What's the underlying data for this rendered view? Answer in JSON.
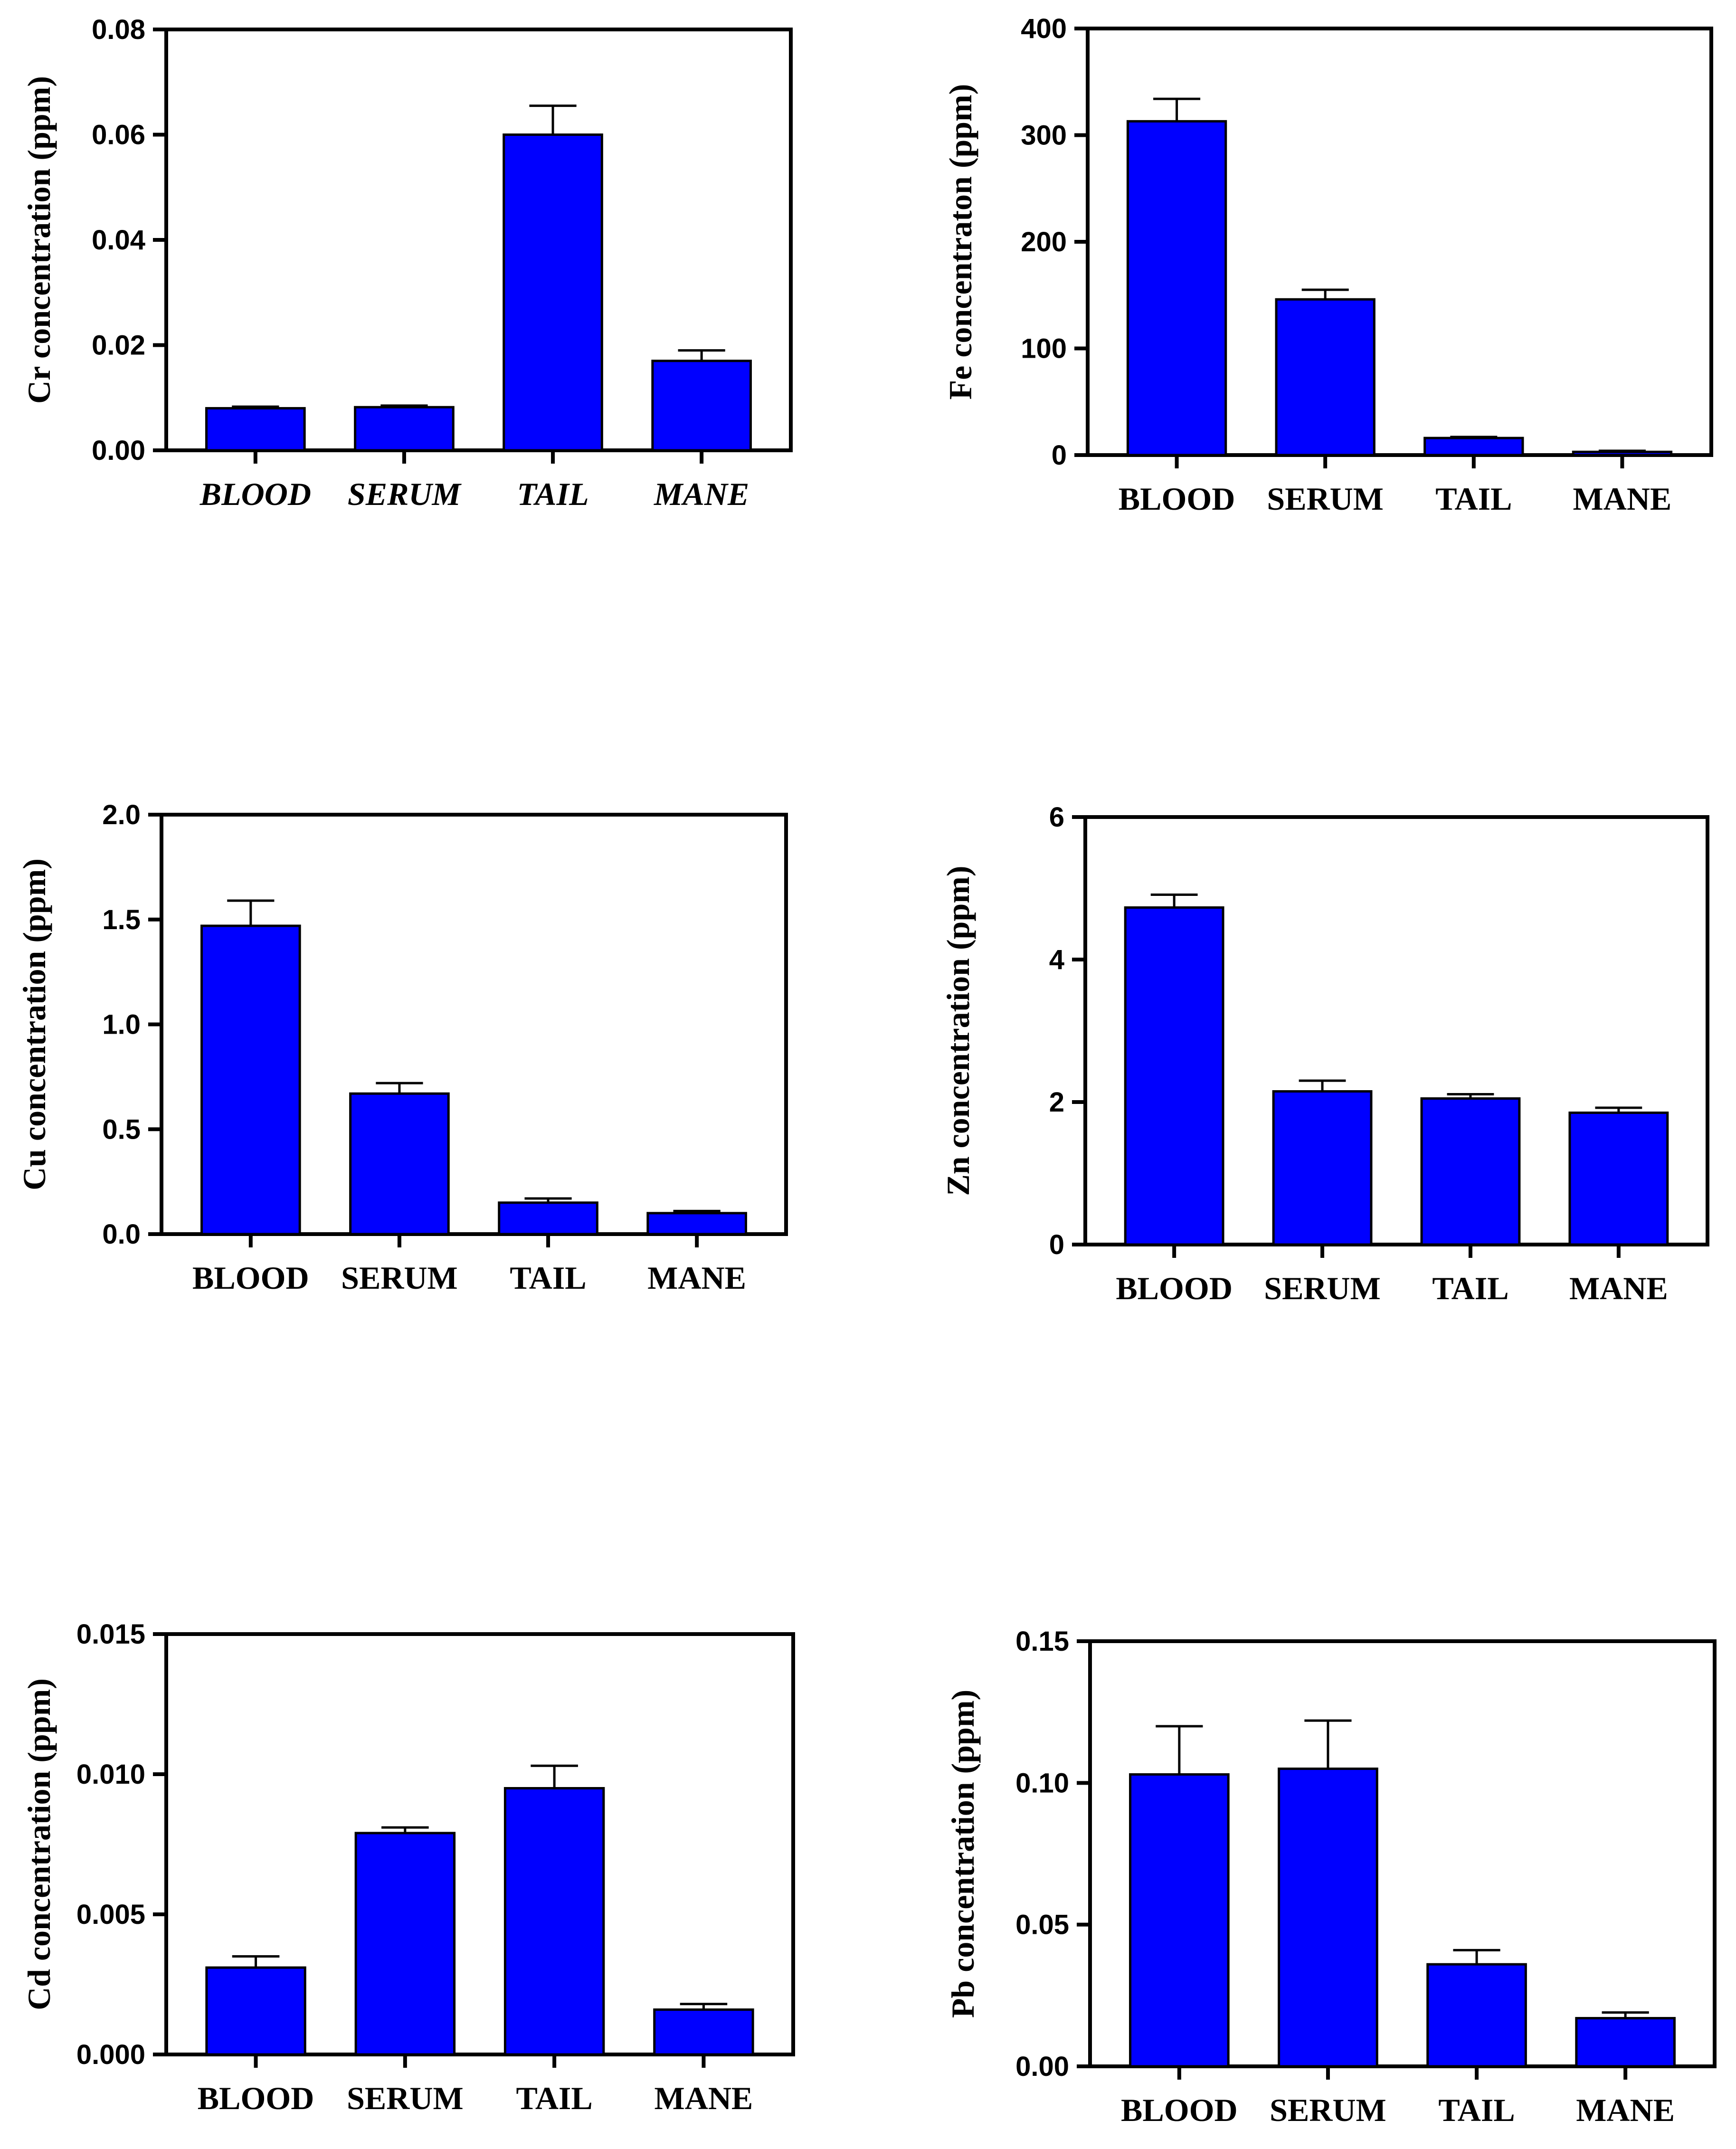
{
  "chart_data": [
    {
      "type": "bar",
      "title": "",
      "ylabel": "Cr concentration (ppm)",
      "xlabel": "",
      "categories": [
        "BLOOD",
        "SERUM",
        "TAIL",
        "MANE"
      ],
      "categories_italic": true,
      "values": [
        0.008,
        0.0082,
        0.06,
        0.017
      ],
      "errors": [
        0.0003,
        0.0003,
        0.0055,
        0.002
      ],
      "ylim": [
        0,
        0.08
      ],
      "yticks": [
        "0.00",
        "0.02",
        "0.04",
        "0.06",
        "0.08"
      ],
      "bar_color": "#0000FF"
    },
    {
      "type": "bar",
      "title": "",
      "ylabel": "Fe concentraton (ppm)",
      "xlabel": "",
      "categories": [
        "BLOOD",
        "SERUM",
        "TAIL",
        "MANE"
      ],
      "categories_italic": false,
      "values": [
        313,
        146,
        16,
        3
      ],
      "errors": [
        21,
        9,
        1,
        1
      ],
      "ylim": [
        0,
        400
      ],
      "yticks": [
        "0",
        "100",
        "200",
        "300",
        "400"
      ],
      "bar_color": "#0000FF"
    },
    {
      "type": "bar",
      "title": "",
      "ylabel": "Cu concentration (ppm)",
      "xlabel": "",
      "categories": [
        "BLOOD",
        "SERUM",
        "TAIL",
        "MANE"
      ],
      "categories_italic": false,
      "values": [
        1.47,
        0.67,
        0.15,
        0.1
      ],
      "errors": [
        0.12,
        0.05,
        0.02,
        0.01
      ],
      "ylim": [
        0,
        2.0
      ],
      "yticks": [
        "0.0",
        "0.5",
        "1.0",
        "1.5",
        "2.0"
      ],
      "bar_color": "#0000FF"
    },
    {
      "type": "bar",
      "title": "",
      "ylabel": "Zn concentration (ppm)",
      "xlabel": "",
      "categories": [
        "BLOOD",
        "SERUM",
        "TAIL",
        "MANE"
      ],
      "categories_italic": false,
      "values": [
        4.73,
        2.15,
        2.05,
        1.85
      ],
      "errors": [
        0.18,
        0.15,
        0.06,
        0.07
      ],
      "ylim": [
        0,
        6
      ],
      "yticks": [
        "0",
        "2",
        "4",
        "6"
      ],
      "bar_color": "#0000FF"
    },
    {
      "type": "bar",
      "title": "",
      "ylabel": "Cd concentration (ppm)",
      "xlabel": "",
      "categories": [
        "BLOOD",
        "SERUM",
        "TAIL",
        "MANE"
      ],
      "categories_italic": false,
      "values": [
        0.0031,
        0.0079,
        0.0095,
        0.0016
      ],
      "errors": [
        0.0004,
        0.0002,
        0.0008,
        0.0002
      ],
      "ylim": [
        0,
        0.015
      ],
      "yticks": [
        "0.000",
        "0.005",
        "0.010",
        "0.015"
      ],
      "bar_color": "#0000FF"
    },
    {
      "type": "bar",
      "title": "",
      "ylabel": "Pb concentration (ppm)",
      "xlabel": "",
      "categories": [
        "BLOOD",
        "SERUM",
        "TAIL",
        "MANE"
      ],
      "categories_italic": false,
      "values": [
        0.103,
        0.105,
        0.036,
        0.017
      ],
      "errors": [
        0.017,
        0.017,
        0.005,
        0.002
      ],
      "ylim": [
        0,
        0.15
      ],
      "yticks": [
        "0.00",
        "0.05",
        "0.10",
        "0.15"
      ],
      "bar_color": "#0000FF"
    }
  ]
}
